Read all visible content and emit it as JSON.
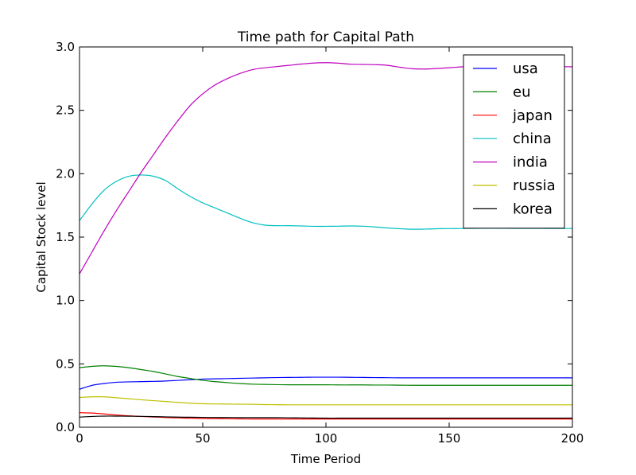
{
  "chart_data": {
    "type": "line",
    "title": "Time path for Capital Path",
    "xlabel": "Time Period",
    "ylabel": "Capital Stock level",
    "xlim": [
      0,
      200
    ],
    "ylim": [
      0.0,
      3.0
    ],
    "xticks": [
      0,
      50,
      100,
      150,
      200
    ],
    "xtick_labels": [
      "0",
      "50",
      "100",
      "150",
      "200"
    ],
    "yticks": [
      0.0,
      0.5,
      1.0,
      1.5,
      2.0,
      2.5,
      3.0
    ],
    "ytick_labels": [
      "0.0",
      "0.5",
      "1.0",
      "1.5",
      "2.0",
      "2.5",
      "3.0"
    ],
    "grid": false,
    "legend_position": "top-right",
    "x": [
      0,
      5,
      10,
      15,
      20,
      25,
      30,
      35,
      40,
      45,
      50,
      55,
      60,
      65,
      70,
      75,
      80,
      85,
      90,
      95,
      100,
      105,
      110,
      115,
      120,
      125,
      130,
      135,
      140,
      145,
      150,
      155,
      160,
      165,
      170,
      175,
      180,
      185,
      190,
      195,
      200
    ],
    "series": [
      {
        "name": "usa",
        "color": "#0000ff",
        "values": [
          0.3,
          0.33,
          0.345,
          0.355,
          0.358,
          0.36,
          0.362,
          0.365,
          0.37,
          0.375,
          0.38,
          0.382,
          0.384,
          0.386,
          0.388,
          0.39,
          0.392,
          0.393,
          0.394,
          0.395,
          0.395,
          0.395,
          0.394,
          0.393,
          0.392,
          0.391,
          0.39,
          0.39,
          0.39,
          0.39,
          0.39,
          0.39,
          0.39,
          0.39,
          0.39,
          0.39,
          0.39,
          0.39,
          0.39,
          0.39,
          0.39
        ]
      },
      {
        "name": "eu",
        "color": "#008000",
        "values": [
          0.47,
          0.48,
          0.485,
          0.48,
          0.47,
          0.455,
          0.44,
          0.42,
          0.4,
          0.385,
          0.37,
          0.36,
          0.352,
          0.345,
          0.34,
          0.338,
          0.336,
          0.335,
          0.335,
          0.335,
          0.335,
          0.334,
          0.334,
          0.334,
          0.333,
          0.333,
          0.332,
          0.331,
          0.331,
          0.331,
          0.331,
          0.331,
          0.331,
          0.331,
          0.331,
          0.331,
          0.331,
          0.331,
          0.331,
          0.331,
          0.331
        ]
      },
      {
        "name": "japan",
        "color": "#ff0000",
        "values": [
          0.115,
          0.112,
          0.105,
          0.097,
          0.09,
          0.085,
          0.081,
          0.077,
          0.074,
          0.071,
          0.069,
          0.068,
          0.067,
          0.066,
          0.065,
          0.065,
          0.065,
          0.065,
          0.065,
          0.065,
          0.065,
          0.065,
          0.065,
          0.065,
          0.065,
          0.065,
          0.065,
          0.065,
          0.065,
          0.065,
          0.065,
          0.065,
          0.065,
          0.065,
          0.065,
          0.065,
          0.065,
          0.065,
          0.065,
          0.065,
          0.065
        ]
      },
      {
        "name": "china",
        "color": "#00bfbf",
        "values": [
          1.63,
          1.76,
          1.87,
          1.94,
          1.98,
          1.99,
          1.98,
          1.945,
          1.88,
          1.82,
          1.77,
          1.73,
          1.69,
          1.65,
          1.615,
          1.595,
          1.59,
          1.59,
          1.588,
          1.585,
          1.585,
          1.586,
          1.588,
          1.586,
          1.58,
          1.572,
          1.566,
          1.562,
          1.563,
          1.566,
          1.567,
          1.568,
          1.569,
          1.57,
          1.57,
          1.569,
          1.569,
          1.569,
          1.568,
          1.568,
          1.568
        ]
      },
      {
        "name": "india",
        "color": "#bf00bf",
        "values": [
          1.21,
          1.38,
          1.55,
          1.71,
          1.86,
          2.01,
          2.15,
          2.29,
          2.42,
          2.54,
          2.63,
          2.7,
          2.75,
          2.79,
          2.82,
          2.835,
          2.845,
          2.855,
          2.865,
          2.873,
          2.876,
          2.872,
          2.864,
          2.862,
          2.86,
          2.855,
          2.84,
          2.828,
          2.826,
          2.83,
          2.836,
          2.843,
          2.85,
          2.855,
          2.858,
          2.859,
          2.856,
          2.852,
          2.848,
          2.845,
          2.843
        ]
      },
      {
        "name": "russia",
        "color": "#bfbf00",
        "values": [
          0.235,
          0.24,
          0.24,
          0.233,
          0.225,
          0.217,
          0.21,
          0.203,
          0.196,
          0.19,
          0.186,
          0.184,
          0.183,
          0.182,
          0.181,
          0.179,
          0.178,
          0.177,
          0.177,
          0.177,
          0.177,
          0.177,
          0.177,
          0.177,
          0.177,
          0.177,
          0.177,
          0.177,
          0.177,
          0.177,
          0.177,
          0.177,
          0.177,
          0.177,
          0.177,
          0.177,
          0.177,
          0.177,
          0.177,
          0.177,
          0.177
        ]
      },
      {
        "name": "korea",
        "color": "#000000",
        "values": [
          0.08,
          0.085,
          0.088,
          0.088,
          0.087,
          0.086,
          0.084,
          0.082,
          0.08,
          0.079,
          0.078,
          0.077,
          0.077,
          0.076,
          0.076,
          0.076,
          0.076,
          0.075,
          0.074,
          0.073,
          0.072,
          0.072,
          0.072,
          0.072,
          0.072,
          0.072,
          0.072,
          0.072,
          0.072,
          0.072,
          0.072,
          0.072,
          0.072,
          0.072,
          0.072,
          0.072,
          0.072,
          0.072,
          0.072,
          0.072,
          0.072
        ]
      }
    ]
  }
}
